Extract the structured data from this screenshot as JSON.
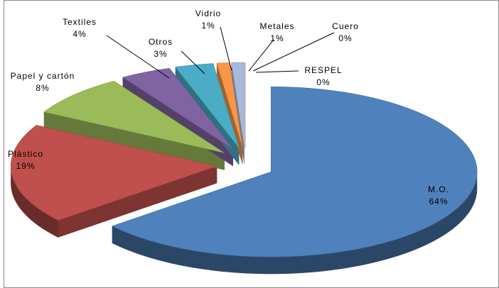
{
  "chart_data": {
    "type": "pie",
    "categories": [
      "M.O.",
      "Plástico",
      "Papel y cartón",
      "Textiles",
      "Otros",
      "Vidrio",
      "Metales",
      "Cuero",
      "RESPEL"
    ],
    "values": [
      64,
      19,
      8,
      4,
      3,
      1,
      1,
      0,
      0
    ],
    "value_labels": [
      "64%",
      "19%",
      "8%",
      "4%",
      "3%",
      "1%",
      "1%",
      "0%",
      "0%"
    ],
    "colors": [
      "#4f81bd",
      "#c0504d",
      "#9bbb59",
      "#8064a2",
      "#4bacc6",
      "#f79646",
      "#a5b9dc",
      "#e6b9b8",
      "#d99694"
    ]
  }
}
